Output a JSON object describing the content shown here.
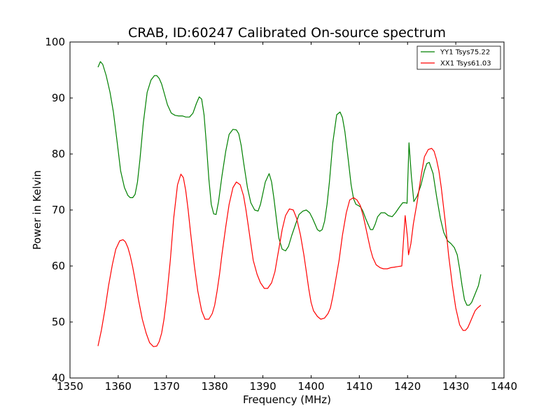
{
  "chart_data": {
    "type": "line",
    "title": "CRAB, ID:60247 Calibrated On-source spectrum",
    "xlabel": "Frequency (MHz)",
    "ylabel": "Power in Kelvin",
    "xlim": [
      1350,
      1440
    ],
    "ylim": [
      40,
      100
    ],
    "xticks": [
      1350,
      1360,
      1370,
      1380,
      1390,
      1400,
      1410,
      1420,
      1430,
      1440
    ],
    "yticks": [
      40,
      50,
      60,
      70,
      80,
      90,
      100
    ],
    "grid": false,
    "legend_position": "top-right",
    "series": [
      {
        "name": "YY1 Tsys75.22",
        "color": "#008000",
        "x": [
          1355.8,
          1356.3,
          1356.8,
          1357.5,
          1358.3,
          1359.0,
          1359.8,
          1360.5,
          1361.3,
          1362.0,
          1362.5,
          1363.0,
          1363.5,
          1364.0,
          1364.5,
          1365.2,
          1366.0,
          1366.8,
          1367.5,
          1368.0,
          1368.5,
          1369.0,
          1369.5,
          1370.2,
          1371.0,
          1371.8,
          1372.5,
          1373.3,
          1374.0,
          1374.8,
          1375.5,
          1376.2,
          1376.8,
          1377.3,
          1377.8,
          1378.3,
          1378.8,
          1379.3,
          1379.8,
          1380.3,
          1380.8,
          1381.5,
          1382.3,
          1383.0,
          1383.8,
          1384.5,
          1385.0,
          1385.5,
          1386.0,
          1386.8,
          1387.5,
          1388.3,
          1389.0,
          1389.5,
          1390.0,
          1390.5,
          1391.3,
          1391.8,
          1392.3,
          1392.8,
          1393.3,
          1394.0,
          1394.7,
          1395.3,
          1396.0,
          1396.8,
          1397.5,
          1398.3,
          1399.0,
          1399.7,
          1400.3,
          1400.8,
          1401.3,
          1401.8,
          1402.3,
          1402.8,
          1403.3,
          1403.8,
          1404.5,
          1405.3,
          1406.0,
          1406.5,
          1407.0,
          1407.7,
          1408.3,
          1408.8,
          1409.3,
          1409.8,
          1410.3,
          1410.8,
          1411.3,
          1411.8,
          1412.3,
          1412.8,
          1413.3,
          1413.8,
          1414.5,
          1415.3,
          1416.0,
          1416.8,
          1417.5,
          1418.3,
          1419.0,
          1419.5,
          1419.9,
          1420.3,
          1420.8,
          1421.3,
          1422.0,
          1422.8,
          1423.5,
          1424.0,
          1424.5,
          1425.3,
          1426.0,
          1426.8,
          1427.5,
          1428.3,
          1429.0,
          1429.7,
          1430.3,
          1430.8,
          1431.3,
          1431.8,
          1432.3,
          1432.8,
          1433.3,
          1434.0,
          1434.7,
          1435.2
        ],
        "y": [
          95.5,
          96.5,
          96.0,
          94.0,
          91.0,
          87.5,
          82.0,
          77.0,
          74.0,
          72.6,
          72.2,
          72.2,
          72.8,
          75.0,
          79.0,
          85.5,
          91.0,
          93.2,
          94.0,
          94.0,
          93.5,
          92.5,
          91.0,
          88.8,
          87.3,
          86.9,
          86.8,
          86.8,
          86.6,
          86.6,
          87.3,
          89.0,
          90.2,
          89.8,
          87.0,
          81.5,
          75.5,
          71.0,
          69.3,
          69.2,
          71.5,
          76.0,
          80.5,
          83.5,
          84.4,
          84.3,
          83.6,
          81.5,
          78.5,
          74.0,
          71.3,
          70.0,
          69.8,
          71.0,
          73.0,
          75.0,
          76.5,
          75.0,
          72.0,
          68.5,
          65.0,
          63.0,
          62.7,
          63.5,
          65.5,
          67.5,
          69.2,
          69.8,
          70.0,
          69.5,
          68.5,
          67.5,
          66.5,
          66.2,
          66.5,
          68.0,
          71.0,
          75.0,
          82.0,
          87.0,
          87.5,
          86.5,
          84.0,
          79.0,
          74.5,
          72.0,
          71.0,
          70.8,
          70.5,
          69.7,
          68.5,
          67.5,
          66.5,
          66.5,
          67.5,
          68.8,
          69.5,
          69.5,
          69.0,
          68.8,
          69.5,
          70.5,
          71.3,
          71.3,
          71.2,
          82.0,
          76.0,
          71.5,
          72.5,
          74.5,
          77.0,
          78.3,
          78.5,
          76.5,
          72.5,
          68.5,
          66.0,
          64.5,
          64.0,
          63.3,
          62.0,
          59.5,
          56.5,
          54.0,
          53.0,
          53.0,
          53.5,
          55.0,
          56.5,
          58.5
        ]
      },
      {
        "name": "XX1 Tsys61.03",
        "color": "#ff0000",
        "x": [
          1355.8,
          1356.5,
          1357.3,
          1358.0,
          1358.8,
          1359.5,
          1360.3,
          1361.0,
          1361.5,
          1362.0,
          1362.5,
          1363.0,
          1363.5,
          1364.2,
          1365.0,
          1365.8,
          1366.5,
          1367.3,
          1368.0,
          1368.5,
          1369.0,
          1369.5,
          1370.0,
          1370.8,
          1371.5,
          1372.3,
          1373.0,
          1373.5,
          1374.0,
          1374.5,
          1375.0,
          1375.8,
          1376.5,
          1377.3,
          1378.0,
          1378.8,
          1379.5,
          1380.0,
          1380.5,
          1381.0,
          1381.5,
          1382.3,
          1383.0,
          1383.8,
          1384.5,
          1385.3,
          1386.0,
          1386.5,
          1387.0,
          1387.5,
          1388.0,
          1388.8,
          1389.5,
          1390.3,
          1391.0,
          1391.8,
          1392.5,
          1393.0,
          1393.5,
          1394.0,
          1394.7,
          1395.5,
          1396.3,
          1397.0,
          1397.8,
          1398.5,
          1399.0,
          1399.5,
          1400.0,
          1400.5,
          1401.3,
          1402.0,
          1402.8,
          1403.5,
          1404.0,
          1404.5,
          1405.0,
          1405.8,
          1406.5,
          1407.3,
          1408.0,
          1408.8,
          1409.5,
          1410.2,
          1410.8,
          1411.3,
          1411.8,
          1412.3,
          1412.8,
          1413.5,
          1414.3,
          1415.0,
          1415.8,
          1416.5,
          1417.3,
          1418.0,
          1418.8,
          1419.5,
          1420.0,
          1420.2,
          1420.7,
          1421.2,
          1422.0,
          1422.8,
          1423.5,
          1424.3,
          1425.0,
          1425.5,
          1426.0,
          1426.5,
          1427.0,
          1427.8,
          1428.5,
          1429.3,
          1430.0,
          1430.8,
          1431.5,
          1432.0,
          1432.5,
          1433.0,
          1433.5,
          1434.0,
          1434.5,
          1435.2
        ],
        "y": [
          45.7,
          48.5,
          52.5,
          56.5,
          60.3,
          63.0,
          64.5,
          64.7,
          64.3,
          63.3,
          61.8,
          59.8,
          57.5,
          54.0,
          50.5,
          48.0,
          46.3,
          45.6,
          45.7,
          46.5,
          48.0,
          50.5,
          54.0,
          61.0,
          68.5,
          74.5,
          76.4,
          75.8,
          73.5,
          70.0,
          66.0,
          60.0,
          55.5,
          52.0,
          50.5,
          50.5,
          51.5,
          53.0,
          55.5,
          58.5,
          62.0,
          67.0,
          71.0,
          74.0,
          75.0,
          74.5,
          72.5,
          70.0,
          67.0,
          64.0,
          61.0,
          58.5,
          57.0,
          56.0,
          56.0,
          57.0,
          59.0,
          61.5,
          64.0,
          66.5,
          69.0,
          70.2,
          70.0,
          68.5,
          65.5,
          62.0,
          59.0,
          56.0,
          53.5,
          52.0,
          51.0,
          50.5,
          50.7,
          51.5,
          52.5,
          54.5,
          57.0,
          61.0,
          65.5,
          69.5,
          71.8,
          72.2,
          71.8,
          70.8,
          69.0,
          67.0,
          65.0,
          63.0,
          61.5,
          60.2,
          59.7,
          59.5,
          59.5,
          59.7,
          59.8,
          59.9,
          60.0,
          69.0,
          65.0,
          62.0,
          64.0,
          67.5,
          71.5,
          76.0,
          79.5,
          80.8,
          81.0,
          80.5,
          79.0,
          77.0,
          74.0,
          68.0,
          62.0,
          56.5,
          52.5,
          49.5,
          48.5,
          48.5,
          49.0,
          50.0,
          51.0,
          52.0,
          52.5,
          53.0
        ]
      }
    ]
  }
}
